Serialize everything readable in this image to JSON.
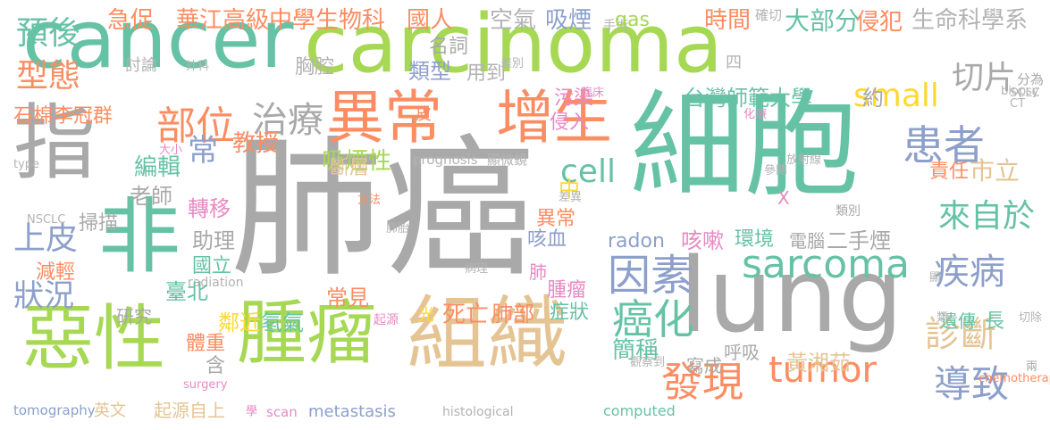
{
  "colors": {
    "gray": "#a9a9a9",
    "green": "#66c2a5",
    "orange": "#fc8d62",
    "blue": "#8da0cb",
    "pink": "#e78ac3",
    "lime": "#a6d854",
    "yellow": "#ffd92f",
    "tan": "#e5c494",
    "lightgray": "#b3b3b3"
  },
  "words": [
    {
      "text": "肺癌",
      "color": "gray"
    },
    {
      "text": "細胞",
      "color": "green"
    },
    {
      "text": "lung",
      "color": "gray"
    },
    {
      "text": "cancer",
      "color": "green"
    },
    {
      "text": "carcinoma",
      "color": "lime"
    },
    {
      "text": "組織",
      "color": "tan"
    },
    {
      "text": "惡性",
      "color": "lime"
    },
    {
      "text": "腫瘤",
      "color": "lime"
    },
    {
      "text": "非",
      "color": "green"
    },
    {
      "text": "指",
      "color": "gray"
    },
    {
      "text": "異常",
      "color": "orange"
    },
    {
      "text": "增生",
      "color": "orange"
    },
    {
      "text": "部位",
      "color": "orange"
    },
    {
      "text": "治療",
      "color": "gray"
    },
    {
      "text": "患者",
      "color": "blue"
    },
    {
      "text": "因素",
      "color": "blue"
    },
    {
      "text": "sarcoma",
      "color": "green"
    },
    {
      "text": "tumor",
      "color": "orange"
    },
    {
      "text": "疾病",
      "color": "blue"
    },
    {
      "text": "導致",
      "color": "blue"
    },
    {
      "text": "發現",
      "color": "orange"
    },
    {
      "text": "癌化",
      "color": "green"
    },
    {
      "text": "診斷",
      "color": "tan"
    },
    {
      "text": "small",
      "color": "yellow"
    },
    {
      "text": "cell",
      "color": "green"
    },
    {
      "text": "來自於",
      "color": "green"
    },
    {
      "text": "上皮",
      "color": "blue"
    },
    {
      "text": "狀況",
      "color": "blue"
    },
    {
      "text": "預後",
      "color": "green"
    },
    {
      "text": "型態",
      "color": "orange"
    },
    {
      "text": "切片",
      "color": "gray"
    },
    {
      "text": "急促",
      "color": "orange"
    },
    {
      "text": "華江高級中學生物科",
      "color": "orange"
    },
    {
      "text": "國人",
      "color": "orange"
    },
    {
      "text": "空氣",
      "color": "lightgray"
    },
    {
      "text": "吸煙",
      "color": "blue"
    },
    {
      "text": "手術",
      "color": "lightgray"
    },
    {
      "text": "gas",
      "color": "lime"
    },
    {
      "text": "時間",
      "color": "orange"
    },
    {
      "text": "確切",
      "color": "lightgray"
    },
    {
      "text": "大部分",
      "color": "green"
    },
    {
      "text": "侵犯",
      "color": "orange"
    },
    {
      "text": "生命科學系",
      "color": "lightgray"
    },
    {
      "text": "名詞",
      "color": "gray"
    },
    {
      "text": "類型",
      "color": "blue"
    },
    {
      "text": "用到",
      "color": "lightgray"
    },
    {
      "text": "胸腔",
      "color": "lightgray"
    },
    {
      "text": "討論",
      "color": "lightgray"
    },
    {
      "text": "外科",
      "color": "lightgray"
    },
    {
      "text": "差別",
      "color": "lightgray"
    },
    {
      "text": "四",
      "color": "lightgray"
    },
    {
      "text": "分為",
      "color": "gray"
    },
    {
      "text": "biopsy",
      "color": "lightgray"
    },
    {
      "text": "SCLC",
      "color": "lightgray"
    },
    {
      "text": "CT",
      "color": "lightgray"
    },
    {
      "text": "臨床",
      "color": "pink"
    },
    {
      "text": "石棉",
      "color": "orange"
    },
    {
      "text": "李冠群",
      "color": "orange"
    },
    {
      "text": "污染",
      "color": "pink"
    },
    {
      "text": "台灣師範大學",
      "color": "green"
    },
    {
      "text": "約",
      "color": "gray"
    },
    {
      "text": "皮",
      "color": "orange"
    },
    {
      "text": "侵入",
      "color": "pink"
    },
    {
      "text": "化療",
      "color": "pink"
    },
    {
      "text": "教授",
      "color": "orange"
    },
    {
      "text": "常",
      "color": "blue"
    },
    {
      "text": "吸煙性",
      "color": "lime"
    },
    {
      "text": "中",
      "color": "yellow"
    },
    {
      "text": "責任",
      "color": "orange"
    },
    {
      "text": "市立",
      "color": "tan"
    },
    {
      "text": "編輯",
      "color": "green"
    },
    {
      "text": "type",
      "color": "lightgray"
    },
    {
      "text": "大小",
      "color": "pink"
    },
    {
      "text": "斷層",
      "color": "tan"
    },
    {
      "text": "prognosis",
      "color": "lightgray"
    },
    {
      "text": "顯微鏡",
      "color": "lightgray"
    },
    {
      "text": "放射線",
      "color": "lightgray"
    },
    {
      "text": "參閱",
      "color": "lightgray"
    },
    {
      "text": "老師",
      "color": "gray"
    },
    {
      "text": "X",
      "color": "pink"
    },
    {
      "text": "方法",
      "color": "orange"
    },
    {
      "text": "差異",
      "color": "lightgray"
    },
    {
      "text": "類別",
      "color": "gray"
    },
    {
      "text": "NSCLC",
      "color": "lightgray"
    },
    {
      "text": "掃描",
      "color": "gray"
    },
    {
      "text": "轉移",
      "color": "pink"
    },
    {
      "text": "異常",
      "color": "orange"
    },
    {
      "text": "助理",
      "color": "gray"
    },
    {
      "text": "咳血",
      "color": "blue"
    },
    {
      "text": "radon",
      "color": "blue"
    },
    {
      "text": "咳嗽",
      "color": "pink"
    },
    {
      "text": "環境",
      "color": "green"
    },
    {
      "text": "電腦",
      "color": "gray"
    },
    {
      "text": "二手煙",
      "color": "gray"
    },
    {
      "text": "肺胎",
      "color": "lightgray"
    },
    {
      "text": "減輕",
      "color": "orange"
    },
    {
      "text": "國立",
      "color": "green"
    },
    {
      "text": "radiation",
      "color": "lightgray"
    },
    {
      "text": "病理",
      "color": "lightgray"
    },
    {
      "text": "肺",
      "color": "pink"
    },
    {
      "text": "腫瘤",
      "color": "pink"
    },
    {
      "text": "顯",
      "color": "lightgray"
    },
    {
      "text": "臺北",
      "color": "green"
    },
    {
      "text": "研究",
      "color": "gray"
    },
    {
      "text": "常見",
      "color": "orange"
    },
    {
      "text": "光",
      "color": "yellow"
    },
    {
      "text": "死亡",
      "color": "orange"
    },
    {
      "text": "肺部",
      "color": "orange"
    },
    {
      "text": "症狀",
      "color": "green"
    },
    {
      "text": "遺傳",
      "color": "green"
    },
    {
      "text": "長",
      "color": "green"
    },
    {
      "text": "鄰近",
      "color": "yellow"
    },
    {
      "text": "氡氣",
      "color": "green"
    },
    {
      "text": "類",
      "color": "lightgray"
    },
    {
      "text": "切除",
      "color": "lightgray"
    },
    {
      "text": "體重",
      "color": "orange"
    },
    {
      "text": "起源",
      "color": "pink"
    },
    {
      "text": "簡稱",
      "color": "green"
    },
    {
      "text": "呼吸",
      "color": "gray"
    },
    {
      "text": "黃湘茹",
      "color": "tan"
    },
    {
      "text": "含",
      "color": "gray"
    },
    {
      "text": "觀察到",
      "color": "lightgray"
    },
    {
      "text": "寫成",
      "color": "gray"
    },
    {
      "text": "surgery",
      "color": "pink"
    },
    {
      "text": "chemotherapy",
      "color": "orange"
    },
    {
      "text": "兩",
      "color": "gray"
    },
    {
      "text": "tomography",
      "color": "blue"
    },
    {
      "text": "英文",
      "color": "tan"
    },
    {
      "text": "起源自上",
      "color": "tan"
    },
    {
      "text": "學",
      "color": "pink"
    },
    {
      "text": "scan",
      "color": "pink"
    },
    {
      "text": "metastasis",
      "color": "blue"
    },
    {
      "text": "histological",
      "color": "lightgray"
    },
    {
      "text": "computed",
      "color": "green"
    }
  ]
}
